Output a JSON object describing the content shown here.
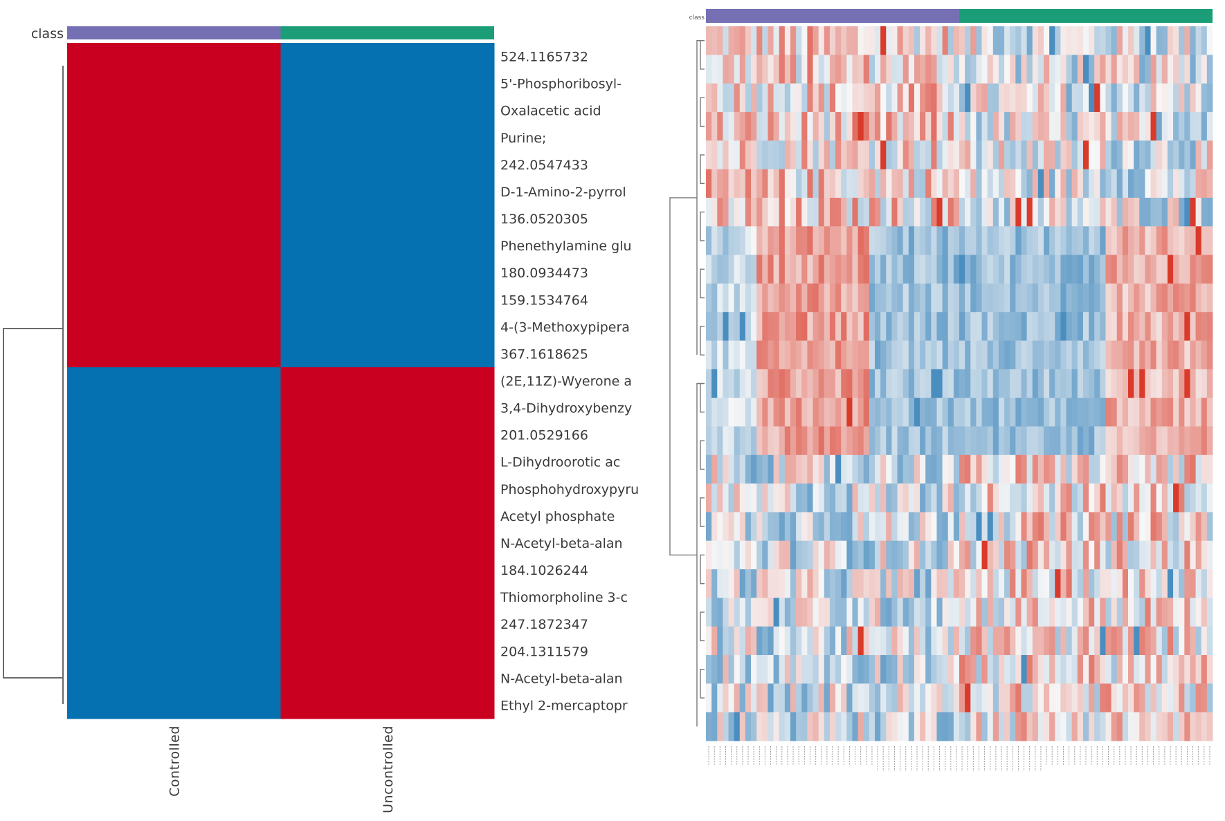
{
  "chart_data": [
    {
      "type": "heatmap",
      "title": "",
      "annotation_label": "class",
      "annotation": [
        {
          "group": "Controlled",
          "color": "#7570b3"
        },
        {
          "group": "Uncontrolled",
          "color": "#1b9e77"
        }
      ],
      "columns": [
        "Controlled",
        "Uncontrolled"
      ],
      "rows": [
        "524.1165732",
        "5'-Phosphoribosyl-",
        "Oxalacetic acid",
        "Purine;",
        "242.0547433",
        "D-1-Amino-2-pyrrol",
        "136.0520305",
        "Phenethylamine glu",
        "180.0934473",
        "159.1534764",
        "4-(3-Methoxypipera",
        "367.1618625",
        "(2E,11Z)-Wyerone a",
        "3,4-Dihydroxybenzy",
        "201.0529166",
        "L-Dihydroorotic ac",
        "Phosphohydroxypyru",
        "Acetyl phosphate",
        "N-Acetyl-beta-alan",
        "184.1026244",
        "Thiomorpholine 3-c",
        "247.1872347",
        "204.1311579",
        "N-Acetyl-beta-alan",
        "Ethyl 2-mercaptopr"
      ],
      "values_sign": {
        "description": "high = red, low = blue (group averages)",
        "rows_1_to_12": {
          "Controlled": "high",
          "Uncontrolled": "low"
        },
        "rows_13_to_25": {
          "Controlled": "low",
          "Uncontrolled": "high"
        }
      },
      "row_clusters": [
        12,
        13
      ],
      "colors": {
        "high": "#ca0020",
        "low": "#0571b0"
      }
    },
    {
      "type": "heatmap",
      "title": "",
      "annotation_label": "class",
      "annotation": [
        {
          "group": "Controlled",
          "color": "#7570b3",
          "n_samples": 45
        },
        {
          "group": "Uncontrolled",
          "color": "#1b9e77",
          "n_samples": 45
        }
      ],
      "n_rows": 25,
      "n_columns": 90,
      "sample_labels_legible": false,
      "color_scale": {
        "low": "#2c7bb6",
        "mid": "#f7f7f7",
        "high": "#d7301f"
      },
      "row_cluster_split": 12
    }
  ],
  "left": {
    "class_label": "class",
    "group_labels": [
      "Controlled",
      "Uncontrolled"
    ]
  },
  "right": {
    "class_label": "class"
  }
}
